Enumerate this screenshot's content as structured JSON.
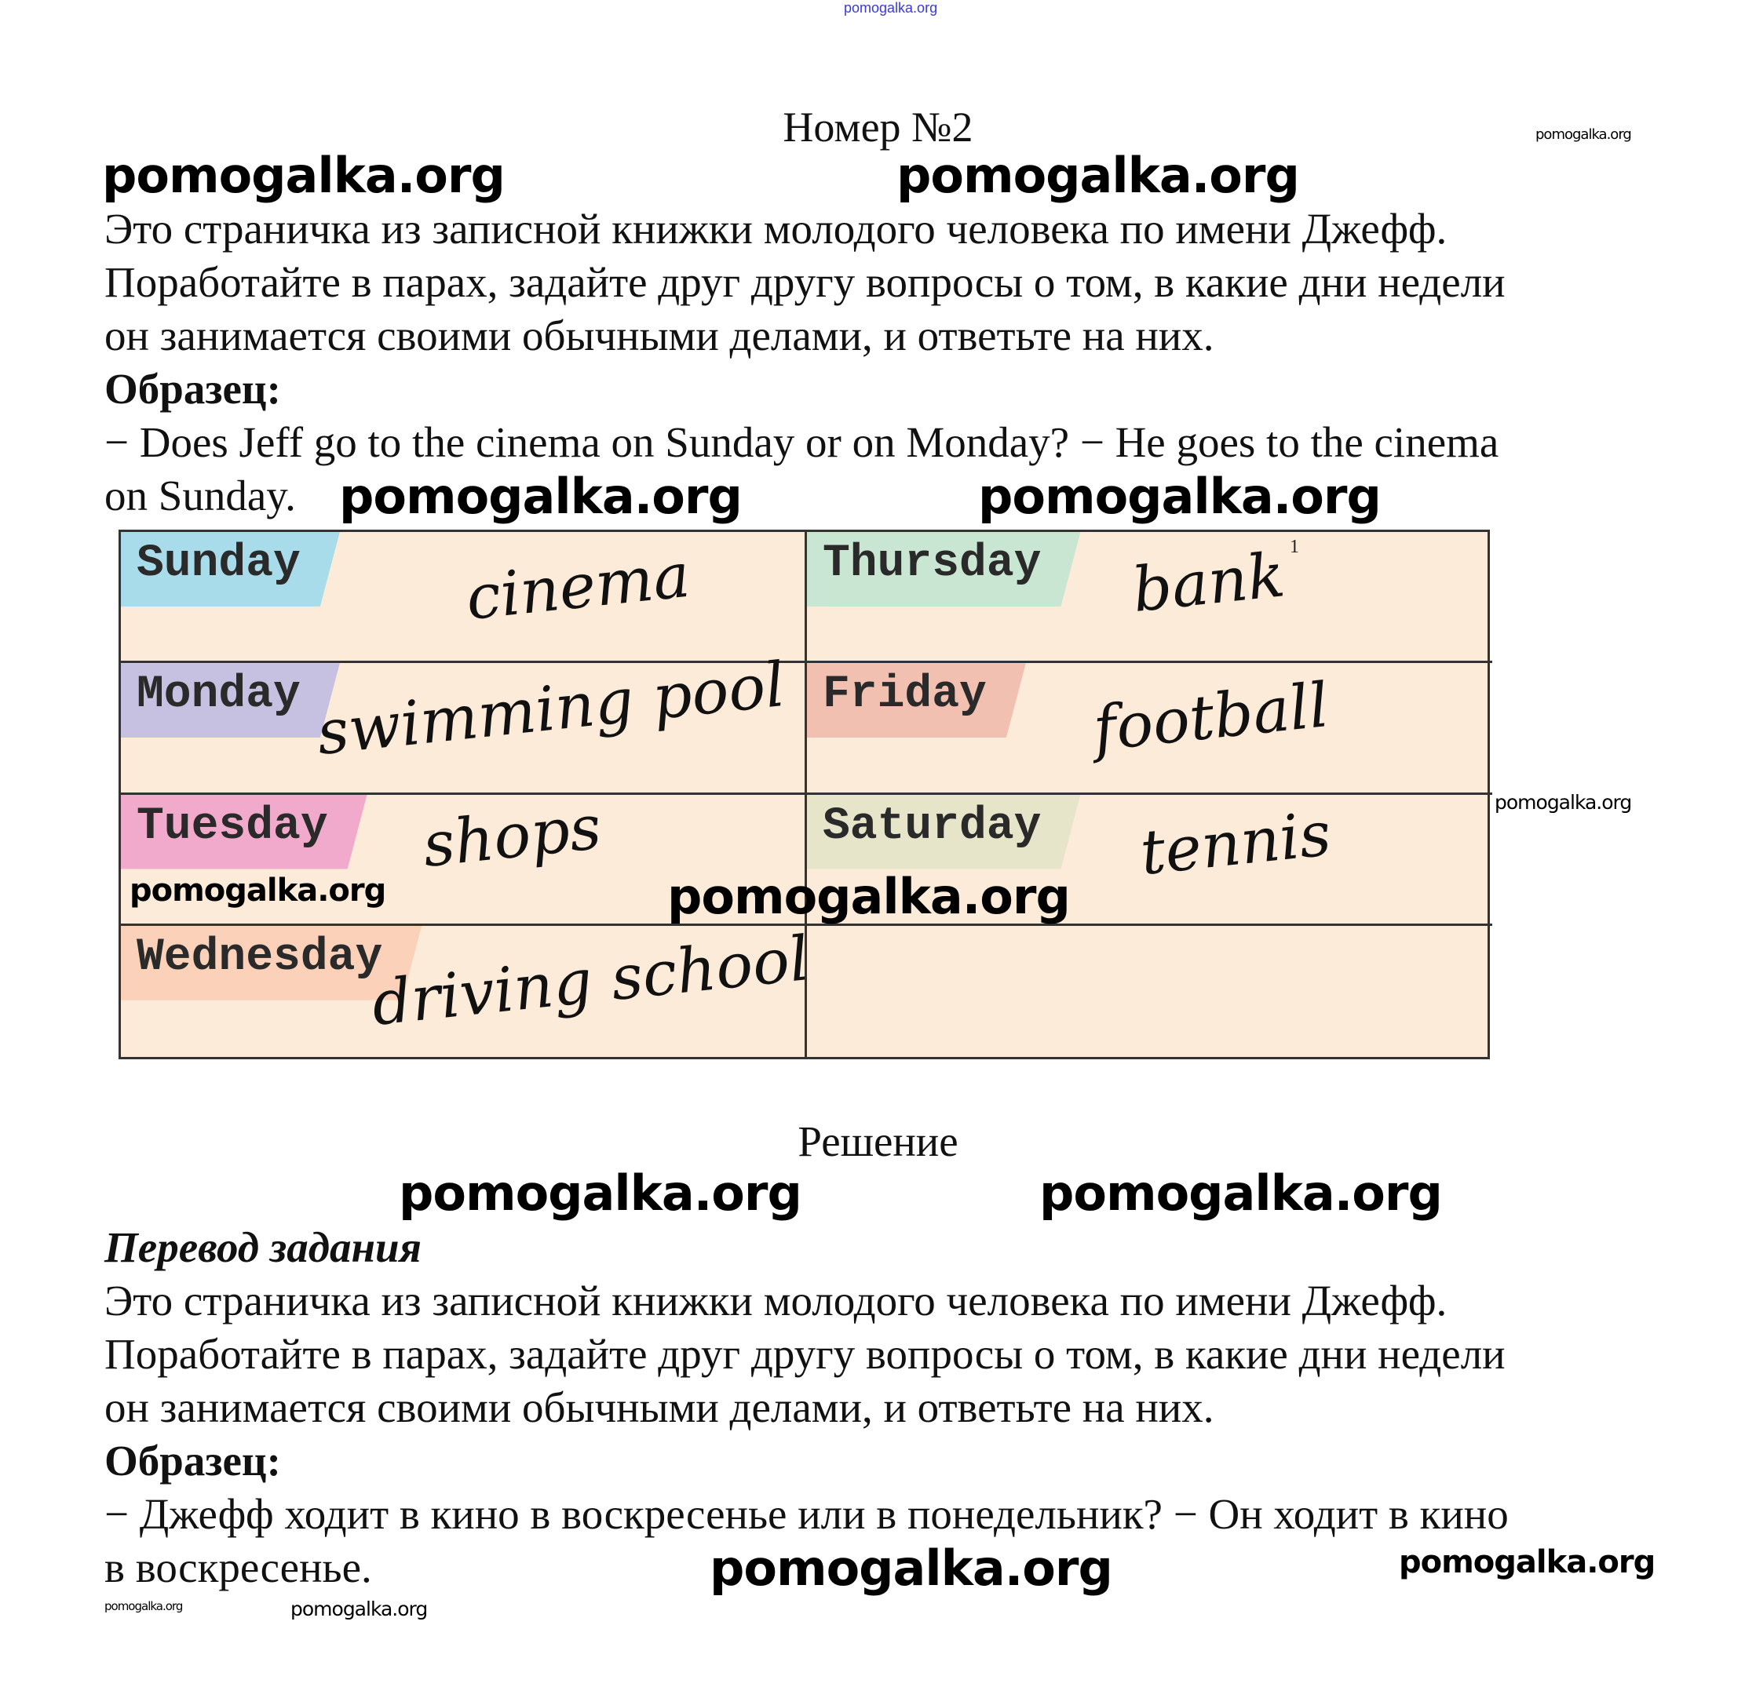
{
  "watermark": "pomogalka.org",
  "title": "Номер №2",
  "task": {
    "lines": [
      "Это страничка из записной книжки молодого человека по имени Джефф.",
      "Поработайте в парах, задайте друг другу вопросы о том, в какие дни недели",
      "он занимается своими обычными делами, и ответьте на них."
    ],
    "sample_label": "Образец:",
    "sample_lines": [
      "− Does Jeff go to the cinema on Sunday or on Monday? − He goes to the cinema",
      "on Sunday."
    ]
  },
  "table": {
    "cells": [
      {
        "day": "Sunday",
        "activity": "cinema",
        "color": "#a9dcea"
      },
      {
        "day": "Thursday",
        "activity": "bank",
        "color": "#c9e6d3",
        "footnote": "1"
      },
      {
        "day": "Monday",
        "activity": "swimming pool",
        "color": "#c6c1e1"
      },
      {
        "day": "Friday",
        "activity": "football",
        "color": "#f1c0b1"
      },
      {
        "day": "Tuesday",
        "activity": "shops",
        "color": "#f2aacc"
      },
      {
        "day": "Saturday",
        "activity": "tennis",
        "color": "#e7e5c9"
      },
      {
        "day": "Wednesday",
        "activity": "driving school",
        "color": "#fbd1b9"
      },
      {
        "day": "",
        "activity": "",
        "color": "#fdebd9"
      }
    ],
    "background": "#fdebd9"
  },
  "solution_heading": "Решение",
  "translation": {
    "heading": "Перевод задания",
    "lines": [
      "Это страничка из записной книжки молодого человека по имени Джефф.",
      "Поработайте в парах, задайте друг другу вопросы о том, в какие дни недели",
      "он занимается своими обычными делами, и ответьте на них."
    ],
    "sample_label": "Образец:",
    "sample_lines": [
      "− Джефф ходит в кино в воскресенье или в понедельник? − Он ходит в кино",
      "в воскресенье."
    ]
  }
}
